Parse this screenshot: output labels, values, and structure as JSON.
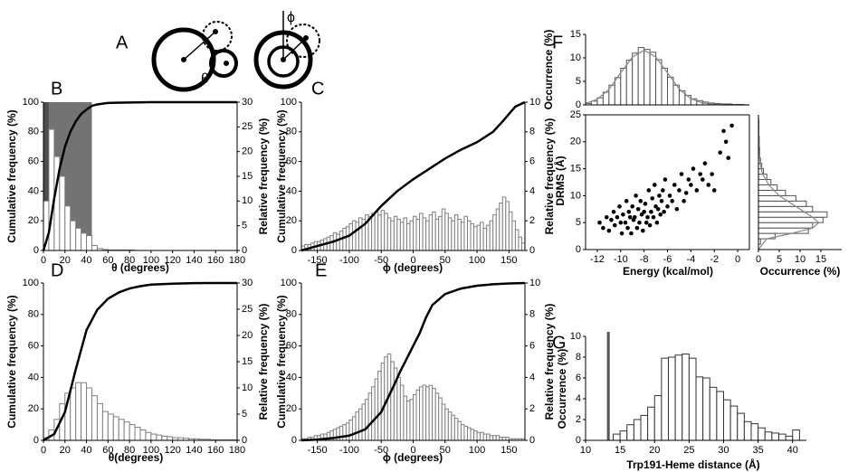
{
  "panel_a": {
    "label": "A",
    "theta": "θ",
    "phi": "ϕ"
  },
  "chart_data": [
    {
      "type": "combo",
      "panel": "B",
      "xlabel": "θ (degrees)",
      "ylabel": "Cumulative frequency (%)",
      "y2label": "Relative frequency (%)",
      "xlim": [
        0,
        180
      ],
      "xticks": [
        0,
        20,
        40,
        60,
        80,
        100,
        120,
        140,
        160,
        180
      ],
      "ylim": [
        0,
        100
      ],
      "yticks": [
        0,
        20,
        40,
        60,
        80,
        100
      ],
      "y2lim": [
        0,
        30
      ],
      "y2ticks": [
        0,
        5,
        10,
        15,
        20,
        25,
        30
      ],
      "shades": [
        {
          "x": [
            0,
            5
          ],
          "color": "#4d4d4d"
        },
        {
          "x": [
            5,
            45
          ],
          "color": "#737373"
        }
      ],
      "hist": {
        "axis": "y2",
        "color": "#ffffff",
        "edgecolor": "#7f7f7f",
        "bins": [
          0,
          5,
          10,
          15,
          20,
          25,
          30,
          35,
          40,
          45,
          50,
          55,
          60,
          65,
          70,
          75,
          80,
          85,
          90,
          95,
          100,
          105,
          110,
          115,
          120,
          125,
          130,
          135,
          140,
          145,
          150,
          155,
          160,
          165,
          170,
          175,
          180
        ],
        "values": [
          10,
          24.5,
          19,
          15,
          9,
          6,
          4.5,
          3.5,
          3,
          1,
          0.4,
          0.2,
          0.1,
          0.1,
          0.1,
          0.1,
          0.1,
          0,
          0,
          0,
          0,
          0,
          0,
          0,
          0,
          0,
          0,
          0,
          0,
          0,
          0,
          0,
          0,
          0,
          0,
          0
        ]
      },
      "line": {
        "color": "#000000",
        "x": [
          0,
          5,
          10,
          15,
          20,
          25,
          30,
          35,
          40,
          45,
          50,
          60,
          80,
          100,
          140,
          180
        ],
        "values": [
          0,
          12,
          35,
          55,
          70,
          80,
          87,
          92,
          95,
          97.5,
          98.5,
          99.5,
          99.8,
          100,
          100,
          100
        ]
      }
    },
    {
      "type": "combo",
      "panel": "C",
      "xlabel": "ϕ (degrees)",
      "ylabel": "Cumulative frequency (%)",
      "y2label": "Relative frequency (%)",
      "xlim": [
        -175,
        175
      ],
      "xticks": [
        -150,
        -100,
        -50,
        0,
        50,
        100,
        150
      ],
      "ylim": [
        0,
        100
      ],
      "yticks": [
        0,
        20,
        40,
        60,
        80,
        100
      ],
      "y2lim": [
        0,
        10
      ],
      "y2ticks": [
        0,
        2,
        4,
        6,
        8,
        10
      ],
      "hist": {
        "axis": "y2",
        "color": "#ffffff",
        "edgecolor": "#7f7f7f",
        "bins": [
          -175,
          -170,
          -165,
          -160,
          -155,
          -150,
          -145,
          -140,
          -135,
          -130,
          -125,
          -120,
          -115,
          -110,
          -105,
          -100,
          -95,
          -90,
          -85,
          -80,
          -75,
          -70,
          -65,
          -60,
          -55,
          -50,
          -45,
          -40,
          -35,
          -30,
          -25,
          -20,
          -15,
          -10,
          -5,
          0,
          5,
          10,
          15,
          20,
          25,
          30,
          35,
          40,
          45,
          50,
          55,
          60,
          65,
          70,
          75,
          80,
          85,
          90,
          95,
          100,
          105,
          110,
          115,
          120,
          125,
          130,
          135,
          140,
          145,
          150,
          155,
          160,
          165,
          170,
          175
        ],
        "values": [
          0.3,
          0.4,
          0.4,
          0.5,
          0.6,
          0.6,
          0.7,
          0.8,
          0.9,
          1.0,
          1.2,
          1.1,
          1.3,
          1.5,
          1.6,
          1.8,
          2.0,
          1.9,
          2.2,
          2.1,
          2.4,
          2.3,
          2.5,
          2.6,
          2.4,
          2.7,
          2.5,
          2.2,
          2.0,
          2.3,
          2.1,
          1.9,
          2.2,
          1.8,
          2.0,
          2.3,
          2.1,
          2.5,
          2.2,
          2.0,
          2.4,
          2.6,
          2.1,
          2.3,
          2.8,
          2.5,
          2.2,
          2.0,
          2.4,
          2.1,
          1.9,
          2.3,
          2.0,
          1.8,
          1.6,
          1.7,
          1.9,
          1.5,
          1.7,
          2.0,
          2.4,
          2.8,
          3.2,
          3.6,
          3.3,
          2.6,
          2.0,
          1.4,
          0.9,
          0.5
        ]
      },
      "line": {
        "color": "#000000",
        "x": [
          -175,
          -150,
          -125,
          -100,
          -75,
          -50,
          -25,
          0,
          25,
          50,
          75,
          100,
          125,
          140,
          150,
          160,
          175
        ],
        "values": [
          0,
          3,
          6,
          10,
          18,
          30,
          40,
          48,
          55,
          62,
          68,
          73,
          80,
          87,
          92,
          97,
          100
        ]
      }
    },
    {
      "type": "combo",
      "panel": "D",
      "xlabel": "θ(degrees)",
      "ylabel": "Cumulative frequency (%)",
      "y2label": "Relative frequency (%)",
      "xlim": [
        0,
        180
      ],
      "xticks": [
        0,
        20,
        40,
        60,
        80,
        100,
        120,
        140,
        160,
        180
      ],
      "ylim": [
        0,
        100
      ],
      "yticks": [
        0,
        20,
        40,
        60,
        80,
        100
      ],
      "y2lim": [
        0,
        30
      ],
      "y2ticks": [
        0,
        5,
        10,
        15,
        20,
        25,
        30
      ],
      "hist": {
        "axis": "y2",
        "color": "#ffffff",
        "edgecolor": "#7f7f7f",
        "bins": [
          0,
          5,
          10,
          15,
          20,
          25,
          30,
          35,
          40,
          45,
          50,
          55,
          60,
          65,
          70,
          75,
          80,
          85,
          90,
          95,
          100,
          105,
          110,
          115,
          120,
          125,
          130,
          135,
          140,
          145,
          150,
          155,
          160,
          165,
          170,
          175,
          180
        ],
        "values": [
          0.5,
          2,
          4,
          7,
          9,
          10,
          11,
          11,
          10,
          8.5,
          7,
          5.5,
          5,
          4.5,
          4,
          3.5,
          3,
          2.5,
          2,
          1.5,
          1.2,
          1,
          0.8,
          0.7,
          0.5,
          0.5,
          0.4,
          0.3,
          0.3,
          0.2,
          0.2,
          0.1,
          0.1,
          0.1,
          0.1,
          0.1
        ]
      },
      "line": {
        "color": "#000000",
        "x": [
          0,
          10,
          20,
          30,
          40,
          50,
          60,
          70,
          80,
          90,
          100,
          120,
          140,
          160,
          180
        ],
        "values": [
          0,
          4,
          18,
          45,
          70,
          83,
          90,
          94,
          96.5,
          98,
          99,
          99.6,
          99.9,
          100,
          100
        ]
      }
    },
    {
      "type": "combo",
      "panel": "E",
      "xlabel": "ϕ (degrees)",
      "ylabel": "Cumulative frequency (%)",
      "y2label": "Relative frequency (%)",
      "xlim": [
        -175,
        175
      ],
      "xticks": [
        -150,
        -100,
        -50,
        0,
        50,
        100,
        150
      ],
      "ylim": [
        0,
        100
      ],
      "yticks": [
        0,
        20,
        40,
        60,
        80,
        100
      ],
      "y2lim": [
        0,
        10
      ],
      "y2ticks": [
        0,
        2,
        4,
        6,
        8,
        10
      ],
      "hist": {
        "axis": "y2",
        "color": "#ffffff",
        "edgecolor": "#7f7f7f",
        "bins": [
          -175,
          -170,
          -165,
          -160,
          -155,
          -150,
          -145,
          -140,
          -135,
          -130,
          -125,
          -120,
          -115,
          -110,
          -105,
          -100,
          -95,
          -90,
          -85,
          -80,
          -75,
          -70,
          -65,
          -60,
          -55,
          -50,
          -45,
          -40,
          -35,
          -30,
          -25,
          -20,
          -15,
          -10,
          -5,
          0,
          5,
          10,
          15,
          20,
          25,
          30,
          35,
          40,
          45,
          50,
          55,
          60,
          65,
          70,
          75,
          80,
          85,
          90,
          95,
          100,
          105,
          110,
          115,
          120,
          125,
          130,
          135,
          140,
          145,
          150,
          155,
          160,
          165,
          170,
          175
        ],
        "values": [
          0.1,
          0.1,
          0.2,
          0.2,
          0.3,
          0.3,
          0.4,
          0.4,
          0.5,
          0.6,
          0.7,
          0.8,
          0.9,
          1.0,
          1.1,
          1.3,
          1.5,
          1.8,
          2.0,
          2.3,
          2.6,
          3.0,
          3.4,
          3.9,
          4.4,
          4.9,
          5.3,
          5.5,
          5.0,
          4.6,
          4.0,
          3.5,
          2.8,
          2.5,
          2.6,
          2.9,
          3.2,
          3.4,
          3.5,
          3.4,
          3.5,
          3.3,
          3.0,
          2.7,
          2.3,
          2.0,
          1.8,
          1.6,
          1.4,
          1.2,
          1.0,
          0.9,
          0.8,
          0.7,
          0.6,
          0.5,
          0.5,
          0.4,
          0.4,
          0.3,
          0.3,
          0.3,
          0.2,
          0.2,
          0.2,
          0.1,
          0.1,
          0.1,
          0.1,
          0.1
        ]
      },
      "line": {
        "color": "#000000",
        "x": [
          -175,
          -150,
          -125,
          -100,
          -75,
          -50,
          -30,
          -20,
          -10,
          0,
          10,
          20,
          30,
          50,
          75,
          100,
          125,
          150,
          175
        ],
        "values": [
          0,
          0.5,
          1.5,
          3,
          7,
          18,
          35,
          44,
          52,
          60,
          68,
          78,
          86,
          93,
          96.5,
          98.3,
          99.2,
          99.7,
          100
        ]
      }
    },
    {
      "type": "histogram",
      "panel": "F",
      "ylabel": "Occurrence (%)",
      "xlim": [
        -13,
        1
      ],
      "ylim": [
        0,
        15
      ],
      "yticks": [
        0,
        5,
        10,
        15
      ],
      "hist": {
        "color": "#ffffff",
        "edgecolor": "#555555",
        "bins": [
          -13,
          -12.5,
          -12,
          -11.5,
          -11,
          -10.5,
          -10,
          -9.5,
          -9,
          -8.5,
          -8,
          -7.5,
          -7,
          -6.5,
          -6,
          -5.5,
          -5,
          -4.5,
          -4,
          -3.5,
          -3,
          -2.5,
          -2,
          -1.5,
          -1,
          -0.5,
          0,
          0.5,
          1
        ],
        "values": [
          0.3,
          0.8,
          1.5,
          2.7,
          4.2,
          5.8,
          7.8,
          9.5,
          11.0,
          12.2,
          11.8,
          11.2,
          9.6,
          7.8,
          5.9,
          4.2,
          3.0,
          2.0,
          1.3,
          0.9,
          0.6,
          0.4,
          0.3,
          0.2,
          0.2,
          0.1,
          0.1,
          0
        ]
      },
      "fit": {
        "color": "#888888",
        "x": [
          -13,
          -12,
          -11,
          -10,
          -9,
          -8,
          -7,
          -6,
          -5,
          -4,
          -3,
          -2,
          -1,
          0,
          1
        ],
        "values": [
          0.3,
          1.2,
          3.3,
          6.8,
          10.2,
          11.6,
          10.2,
          6.8,
          3.4,
          1.3,
          0.4,
          0.1,
          0,
          0,
          0
        ]
      }
    },
    {
      "type": "scatter",
      "xlabel": "Energy (kcal/mol)",
      "ylabel": "DRMS (Å)",
      "color": "#000000",
      "xlim": [
        -13,
        1
      ],
      "xticks": [
        -12,
        -10,
        -8,
        -6,
        -4,
        -2,
        0
      ],
      "ylim": [
        0,
        25
      ],
      "yticks": [
        0,
        5,
        10,
        15,
        20,
        25
      ],
      "x": [
        -11.8,
        -11.5,
        -11.2,
        -11,
        -10.8,
        -10.6,
        -10.5,
        -10.3,
        -10.1,
        -10,
        -9.9,
        -9.8,
        -9.6,
        -9.5,
        -9.4,
        -9.3,
        -9.2,
        -9.1,
        -9,
        -8.9,
        -8.8,
        -8.7,
        -8.6,
        -8.5,
        -8.4,
        -8.3,
        -8.2,
        -8.1,
        -8,
        -7.9,
        -7.8,
        -7.7,
        -7.6,
        -7.5,
        -7.4,
        -7.3,
        -7.2,
        -7.1,
        -7,
        -6.9,
        -6.8,
        -6.7,
        -6.6,
        -6.5,
        -6.4,
        -6.3,
        -6.2,
        -6,
        -5.8,
        -5.6,
        -5.4,
        -5.2,
        -5,
        -4.8,
        -4.6,
        -4.4,
        -4.2,
        -4,
        -3.8,
        -3.5,
        -3.2,
        -3,
        -2.8,
        -2.5,
        -2.2,
        -2,
        -1.5,
        -1.2,
        -1,
        -0.8,
        -0.5
      ],
      "values": [
        5,
        4,
        6,
        3.5,
        5.5,
        7,
        4.5,
        6,
        8,
        5,
        3,
        6.5,
        5,
        9,
        4,
        7,
        6,
        3,
        8,
        5.5,
        6,
        10,
        4,
        7.5,
        5,
        9,
        6.5,
        3.5,
        7,
        8.5,
        5,
        6,
        11,
        4.5,
        7,
        9.5,
        6,
        12,
        8,
        5,
        7.5,
        10,
        6.5,
        9,
        11,
        7,
        13,
        8,
        10,
        9,
        12,
        7.5,
        11,
        14,
        9,
        10.5,
        13,
        12,
        15,
        11,
        14,
        13,
        16,
        12,
        14,
        11,
        18,
        22,
        20,
        17,
        23
      ]
    },
    {
      "type": "histogram",
      "orientation": "horizontal",
      "xlabel": "Occurrence (%)",
      "xlim": [
        0,
        20
      ],
      "xticks": [
        0,
        5,
        10,
        15
      ],
      "ylim": [
        0,
        25
      ],
      "hist": {
        "color": "#ffffff",
        "edgecolor": "#555555",
        "bins": [
          0,
          1,
          2,
          3,
          4,
          5,
          6,
          7,
          8,
          9,
          10,
          11,
          12,
          13,
          14,
          15,
          16,
          17,
          18,
          19,
          20,
          21,
          22,
          23,
          24,
          25
        ],
        "values": [
          0,
          0.5,
          4,
          12,
          13,
          15.5,
          16.5,
          13,
          11.5,
          9,
          6.5,
          4.5,
          3,
          2,
          1.2,
          0.8,
          0.5,
          0.3,
          0.3,
          0.2,
          0.2,
          0.1,
          0.1,
          0.1,
          0
        ]
      },
      "fit": {
        "color": "#888888",
        "y": [
          0,
          2,
          3,
          4,
          5,
          6,
          7,
          8,
          9,
          10,
          12,
          14,
          16,
          20,
          25
        ],
        "values": [
          0,
          2,
          8,
          13,
          14.5,
          13,
          11,
          9,
          7,
          5,
          2.5,
          1,
          0.4,
          0.1,
          0
        ]
      }
    },
    {
      "type": "histogram",
      "panel": "G",
      "xlabel": "Trp191-Heme distance (Å)",
      "ylabel": "Occurrence (%)",
      "xlim": [
        10,
        42
      ],
      "xticks": [
        10,
        15,
        20,
        25,
        30,
        35,
        40
      ],
      "ylim": [
        0,
        10
      ],
      "yticks": [
        0,
        2,
        4,
        6,
        8,
        10
      ],
      "vline": {
        "x": 13.3,
        "color": "#555555"
      },
      "hist": {
        "color": "#ffffff",
        "edgecolor": "#333333",
        "bins": [
          14,
          15,
          16,
          17,
          18,
          19,
          20,
          21,
          22,
          23,
          24,
          25,
          26,
          27,
          28,
          29,
          30,
          31,
          32,
          33,
          34,
          35,
          36,
          37,
          38,
          39,
          40,
          41
        ],
        "values": [
          0.6,
          0.9,
          1.5,
          2.0,
          2.4,
          3.2,
          4.3,
          7.9,
          8.0,
          8.2,
          8.3,
          7.9,
          6.1,
          6.0,
          5.1,
          4.7,
          3.9,
          3.3,
          2.6,
          1.8,
          1.6,
          1.2,
          0.8,
          0.7,
          0.6,
          0.4,
          1.0
        ]
      }
    }
  ]
}
